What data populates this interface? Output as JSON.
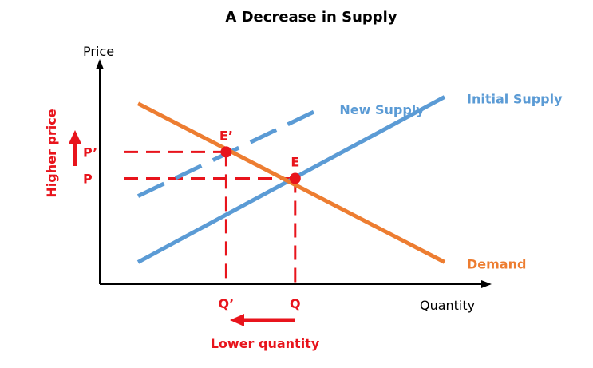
{
  "chart_data": {
    "type": "line",
    "title": "A Decrease in Supply",
    "xlabel": "Quantity",
    "ylabel": "Price",
    "xlim": [
      0,
      10
    ],
    "ylim": [
      0,
      10
    ],
    "grid": false,
    "series": [
      {
        "name": "Initial Supply",
        "color": "#5b9bd5",
        "style": "solid",
        "points": [
          [
            1,
            1
          ],
          [
            9,
            8.5
          ]
        ]
      },
      {
        "name": "New Supply",
        "color": "#5b9bd5",
        "style": "dashed",
        "points": [
          [
            1,
            4
          ],
          [
            5.8,
            8
          ]
        ]
      },
      {
        "name": "Demand",
        "color": "#ed7d31",
        "style": "solid",
        "points": [
          [
            1,
            8.2
          ],
          [
            9,
            1
          ]
        ]
      }
    ],
    "equilibria": [
      {
        "label": "E",
        "quantity_label": "Q",
        "price_label": "P",
        "x": 5.1,
        "y": 4.8
      },
      {
        "label": "E’",
        "quantity_label": "Q’",
        "price_label": "P’",
        "x": 3.3,
        "y": 6.0
      }
    ],
    "annotations": {
      "price_change": "Higher price",
      "quantity_change": "Lower quantity",
      "color": "#e8141c"
    }
  }
}
